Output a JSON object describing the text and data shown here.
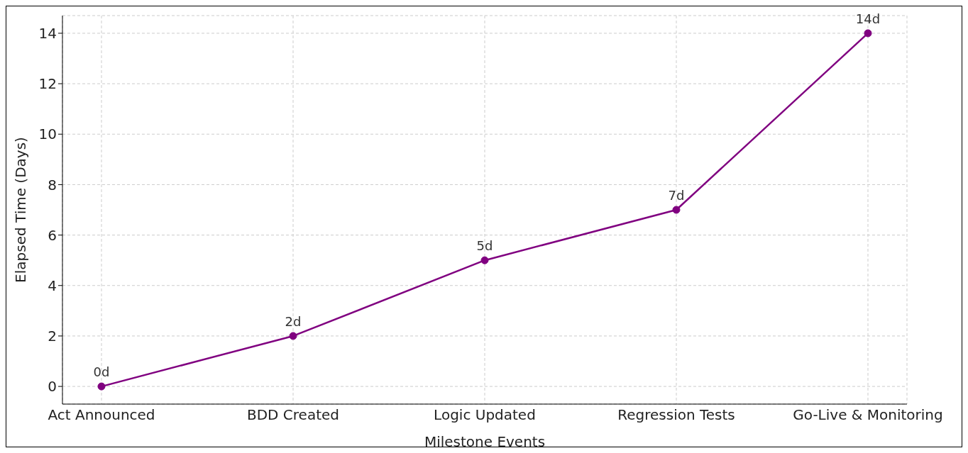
{
  "chart_data": {
    "type": "line",
    "xlabel": "Milestone Events",
    "ylabel": "Elapsed Time (Days)",
    "categories": [
      "Act Announced",
      "BDD Created",
      "Logic Updated",
      "Regression Tests",
      "Go-Live & Monitoring"
    ],
    "series": [
      {
        "color": "#800080",
        "values": [
          0,
          2,
          5,
          7,
          14
        ],
        "value_labels": [
          "0d",
          "2d",
          "5d",
          "7d",
          "14d"
        ]
      }
    ],
    "ylim": [
      -0.7,
      14.7
    ],
    "yticks": [
      0,
      2,
      4,
      6,
      8,
      10,
      12,
      14
    ],
    "grid": true,
    "marker": "circle",
    "line_style": "solid"
  }
}
